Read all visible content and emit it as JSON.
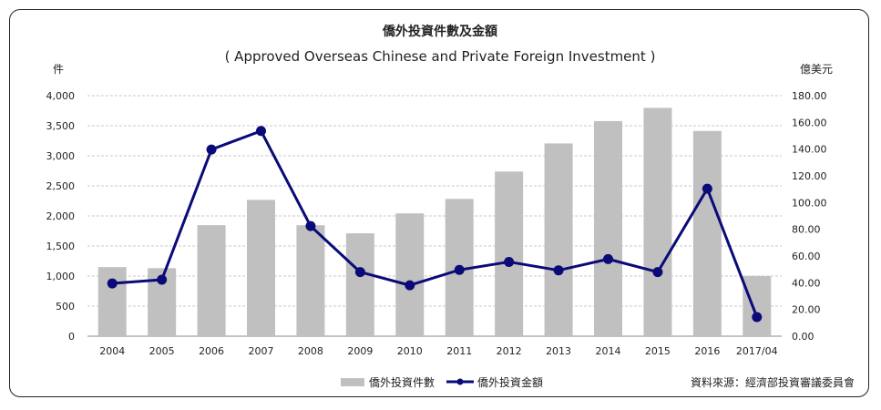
{
  "chart_data": {
    "type": "bar+line",
    "title": "僑外投資件數及金額",
    "subtitle": "( Approved Overseas Chinese and Private Foreign Investment )",
    "y_left_label": "件",
    "y_right_label": "億美元",
    "categories": [
      "2004",
      "2005",
      "2006",
      "2007",
      "2008",
      "2009",
      "2010",
      "2011",
      "2012",
      "2013",
      "2014",
      "2015",
      "2016",
      "2017/04"
    ],
    "series": [
      {
        "name": "僑外投資件數",
        "kind": "bar",
        "axis": "left",
        "color": "#c0c0c0",
        "values": [
          1149,
          1131,
          1846,
          2267,
          1845,
          1711,
          2042,
          2283,
          2738,
          3206,
          3577,
          3797,
          3413,
          1001
        ]
      },
      {
        "name": "僑外投資金額",
        "kind": "line",
        "axis": "right",
        "color": "#0a0a78",
        "values": [
          39.5,
          42.3,
          139.7,
          153.6,
          82.4,
          48.0,
          38.1,
          49.6,
          55.6,
          49.3,
          57.7,
          48.0,
          110.4,
          14.3
        ]
      }
    ],
    "y_left": {
      "min": 0,
      "max": 4000,
      "ticks": [
        "0",
        "500",
        "1,000",
        "1,500",
        "2,000",
        "2,500",
        "3,000",
        "3,500",
        "4,000"
      ]
    },
    "y_right": {
      "min": 0,
      "max": 180,
      "ticks": [
        "0.00",
        "20.00",
        "40.00",
        "60.00",
        "80.00",
        "100.00",
        "120.00",
        "140.00",
        "160.00",
        "180.00"
      ]
    },
    "grid": true,
    "legend_position": "bottom-center"
  },
  "source_text": "資料來源：經濟部投資審議委員會"
}
